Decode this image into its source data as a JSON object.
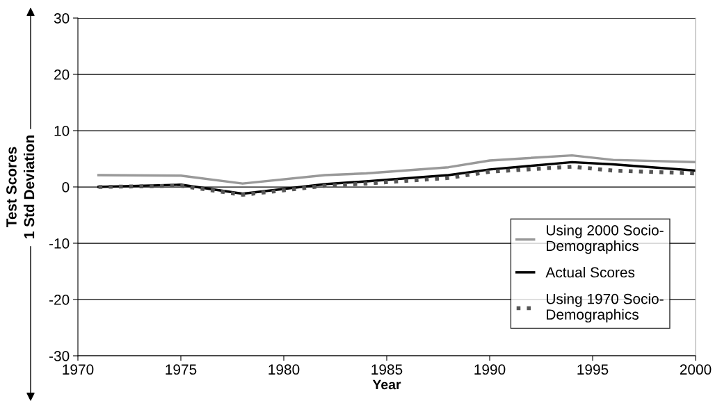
{
  "chart_data": {
    "type": "line",
    "xlabel": "Year",
    "ylabel": "Test Scores\n1 Std Deviation",
    "x": [
      1971,
      1975,
      1978,
      1982,
      1984,
      1988,
      1990,
      1994,
      1996,
      2000
    ],
    "series": [
      {
        "name": "Using 2000 Socio-\nDemographics",
        "color": "#999999",
        "line_style": "solid",
        "values": [
          2.1,
          2.0,
          0.6,
          2.1,
          2.4,
          3.5,
          4.7,
          5.6,
          4.8,
          4.4
        ]
      },
      {
        "name": "Actual Scores",
        "color": "#000000",
        "line_style": "solid",
        "values": [
          0.0,
          0.4,
          -1.2,
          0.5,
          1.0,
          2.1,
          3.1,
          4.4,
          4.0,
          2.9
        ]
      },
      {
        "name": "Using 1970 Socio-\nDemographics",
        "color": "#555555",
        "line_style": "dotted",
        "values": [
          0.0,
          0.2,
          -1.4,
          0.2,
          0.6,
          1.6,
          2.7,
          3.6,
          2.9,
          2.4
        ]
      }
    ],
    "xlim": [
      1970,
      2000
    ],
    "xticks": [
      1970,
      1975,
      1980,
      1985,
      1990,
      1995,
      2000
    ],
    "ylim": [
      -30,
      30
    ],
    "yticks": [
      -30,
      -20,
      -10,
      0,
      10,
      20,
      30
    ],
    "grid": "y",
    "legend": "bottom right",
    "marker": "none"
  }
}
